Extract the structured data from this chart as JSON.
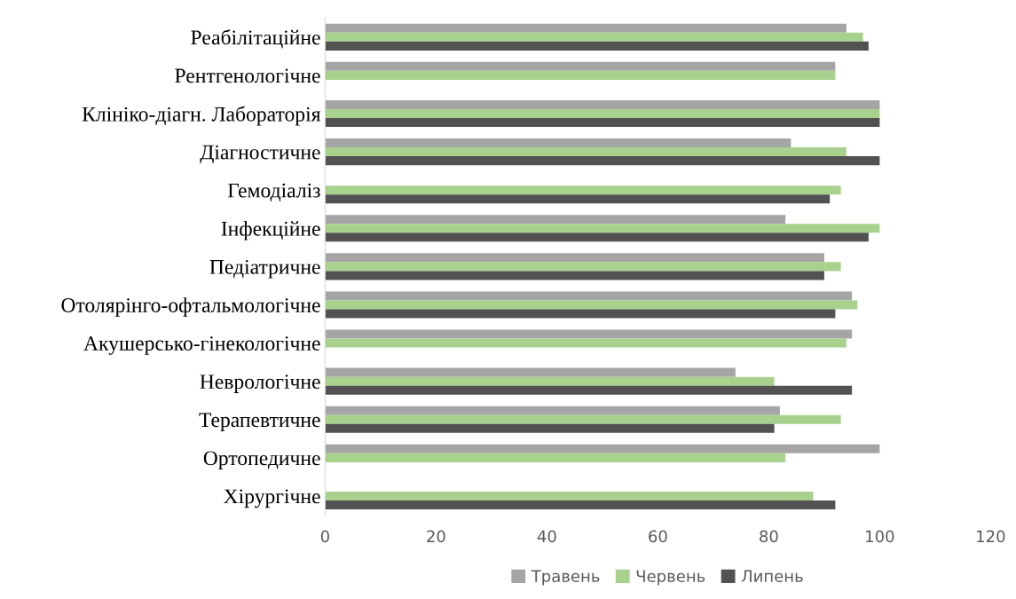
{
  "chart_data": {
    "type": "bar",
    "orientation": "horizontal",
    "categories": [
      "Реабілітаційне",
      "Рентгенологічне",
      "Клініко-діагн. Лабораторія",
      "Діагностичне",
      "Гемодіаліз",
      "Інфекційне",
      "Педіатричне",
      "Отолярінго-офтальмологічне",
      "Акушерсько-гінекологічне",
      "Неврологічне",
      "Терапевтичне",
      "Ортопедичне",
      "Хірургічне"
    ],
    "series": [
      {
        "name": "Травень",
        "color": "#a5a5a5",
        "values": [
          94,
          92,
          100,
          84,
          0,
          83,
          90,
          95,
          95,
          74,
          82,
          100,
          0
        ]
      },
      {
        "name": "Червень",
        "color": "#a9d18e",
        "values": [
          97,
          92,
          100,
          94,
          93,
          100,
          93,
          96,
          94,
          81,
          93,
          83,
          88
        ]
      },
      {
        "name": "Липень",
        "color": "#525252",
        "values": [
          98,
          0,
          100,
          100,
          91,
          98,
          90,
          92,
          0,
          95,
          81,
          0,
          92
        ]
      }
    ],
    "xlim": [
      0,
      120
    ],
    "xticks": [
      0,
      20,
      40,
      60,
      80,
      100,
      120
    ],
    "grid": false,
    "legend": "bottom"
  }
}
